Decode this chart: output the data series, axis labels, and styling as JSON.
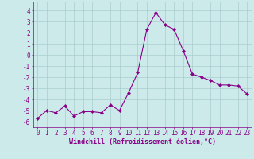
{
  "x": [
    0,
    1,
    2,
    3,
    4,
    5,
    6,
    7,
    8,
    9,
    10,
    11,
    12,
    13,
    14,
    15,
    16,
    17,
    18,
    19,
    20,
    21,
    22,
    23
  ],
  "y": [
    -5.7,
    -5.0,
    -5.2,
    -4.6,
    -5.5,
    -5.1,
    -5.1,
    -5.2,
    -4.5,
    -5.0,
    -3.4,
    -1.6,
    2.3,
    3.8,
    2.7,
    2.3,
    0.4,
    -1.7,
    -2.0,
    -2.3,
    -2.7,
    -2.7,
    -2.8,
    -3.5
  ],
  "line_color": "#880088",
  "marker": "D",
  "marker_size": 2.0,
  "bg_color": "#cceaea",
  "grid_color": "#aacccc",
  "xlabel": "Windchill (Refroidissement éolien,°C)",
  "xlabel_color": "#880088",
  "xlabel_fontsize": 6.0,
  "tick_color": "#880088",
  "tick_fontsize": 5.5,
  "yticks": [
    -6,
    -5,
    -4,
    -3,
    -2,
    -1,
    0,
    1,
    2,
    3,
    4
  ],
  "ylim": [
    -6.5,
    4.8
  ],
  "xlim": [
    -0.5,
    23.5
  ]
}
